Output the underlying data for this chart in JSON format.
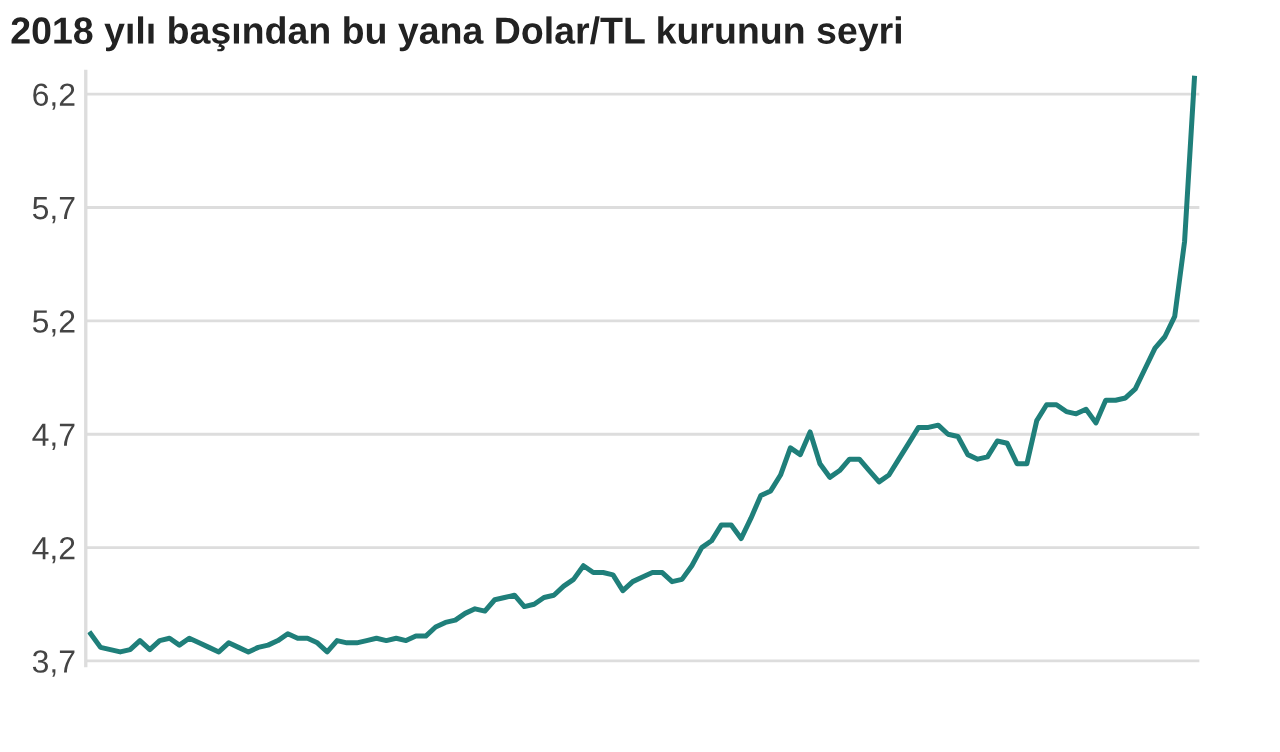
{
  "chart_data": {
    "type": "line",
    "title": "2018 yılı başından bu yana Dolar/TL kurunun seyri",
    "categories": [
      null,
      null,
      null,
      null,
      null,
      null,
      null,
      null,
      null,
      null,
      null,
      null,
      null,
      null,
      null,
      null,
      null,
      null,
      null,
      null,
      null,
      null,
      null,
      null,
      null,
      null,
      null,
      null,
      null,
      null,
      null,
      null,
      null,
      null,
      null,
      null,
      null,
      null,
      null,
      null,
      null,
      null,
      null,
      null,
      null,
      null,
      null,
      null,
      null,
      null,
      null,
      null,
      null,
      null,
      null,
      null,
      null,
      null,
      null,
      null,
      null,
      null,
      null,
      null,
      null,
      null,
      null,
      null,
      null,
      null,
      null,
      null,
      null,
      null,
      null,
      null,
      null,
      null,
      null,
      null,
      null,
      null,
      null,
      null,
      null,
      null,
      null,
      null,
      null,
      null,
      null,
      null,
      null,
      null,
      null,
      null,
      null,
      null,
      null,
      null,
      null,
      null,
      null,
      null,
      null,
      null,
      null,
      null,
      null,
      null,
      null,
      null,
      null
    ],
    "series": [
      {
        "color": "#1f7f7a",
        "values": [
          3.82,
          3.76,
          3.75,
          3.74,
          3.75,
          3.79,
          3.75,
          3.79,
          3.8,
          3.77,
          3.8,
          3.78,
          3.76,
          3.74,
          3.78,
          3.76,
          3.74,
          3.76,
          3.77,
          3.79,
          3.82,
          3.8,
          3.8,
          3.78,
          3.74,
          3.79,
          3.78,
          3.78,
          3.79,
          3.8,
          3.79,
          3.8,
          3.79,
          3.81,
          3.81,
          3.85,
          3.87,
          3.88,
          3.91,
          3.93,
          3.92,
          3.97,
          3.98,
          3.99,
          3.94,
          3.95,
          3.98,
          3.99,
          4.03,
          4.06,
          4.12,
          4.09,
          4.09,
          4.08,
          4.01,
          4.05,
          4.07,
          4.09,
          4.09,
          4.05,
          4.06,
          4.12,
          4.2,
          4.23,
          4.3,
          4.3,
          4.24,
          4.33,
          4.43,
          4.45,
          4.52,
          4.64,
          4.61,
          4.71,
          4.57,
          4.51,
          4.54,
          4.59,
          4.59,
          4.54,
          4.49,
          4.52,
          4.59,
          4.66,
          4.73,
          4.73,
          4.74,
          4.7,
          4.69,
          4.61,
          4.59,
          4.6,
          4.67,
          4.66,
          4.57,
          4.57,
          4.76,
          4.83,
          4.83,
          4.8,
          4.79,
          4.81,
          4.75,
          4.85,
          4.85,
          4.86,
          4.9,
          4.99,
          5.08,
          5.13,
          5.22,
          5.55,
          6.27
        ]
      }
    ],
    "ylim": [
      3.68,
      6.3
    ],
    "yticks": [
      {
        "value": 3.7,
        "label": "3,7"
      },
      {
        "value": 4.2,
        "label": "4,2"
      },
      {
        "value": 4.7,
        "label": "4,7"
      },
      {
        "value": 5.2,
        "label": "5,2"
      },
      {
        "value": 5.7,
        "label": "5,7"
      },
      {
        "value": 6.2,
        "label": "6,2"
      }
    ],
    "grid": "y",
    "marker": "none",
    "line_style": "solid",
    "tick_labels": "y"
  }
}
